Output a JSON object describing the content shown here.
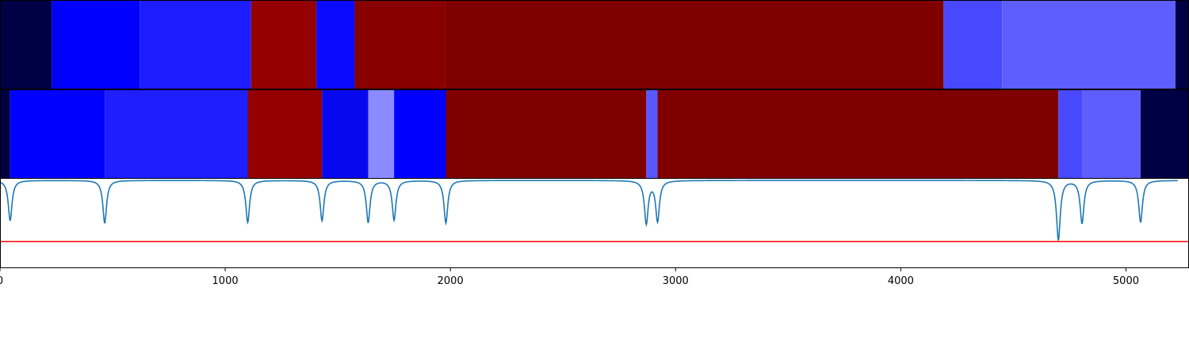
{
  "chart_data": [
    {
      "type": "heatmap",
      "title": "",
      "xlabel": "",
      "ylabel": "",
      "xlim": [
        0,
        5280
      ],
      "segments": [
        {
          "start": 0,
          "end": 230,
          "color": "#000044"
        },
        {
          "start": 230,
          "end": 620,
          "color": "#0000ff"
        },
        {
          "start": 620,
          "end": 1115,
          "color": "#1c1cff"
        },
        {
          "start": 1115,
          "end": 1405,
          "color": "#940000"
        },
        {
          "start": 1405,
          "end": 1575,
          "color": "#0a0aff"
        },
        {
          "start": 1575,
          "end": 1975,
          "color": "#880000"
        },
        {
          "start": 1975,
          "end": 4190,
          "color": "#800000"
        },
        {
          "start": 4190,
          "end": 4450,
          "color": "#4848ff"
        },
        {
          "start": 4450,
          "end": 5220,
          "color": "#5e5eff"
        },
        {
          "start": 5220,
          "end": 5280,
          "color": "#000044"
        }
      ]
    },
    {
      "type": "heatmap",
      "title": "",
      "xlabel": "",
      "ylabel": "",
      "xlim": [
        0,
        5280
      ],
      "segments": [
        {
          "start": 0,
          "end": 45,
          "color": "#000044"
        },
        {
          "start": 45,
          "end": 465,
          "color": "#0000ff"
        },
        {
          "start": 465,
          "end": 1100,
          "color": "#1e1eff"
        },
        {
          "start": 1100,
          "end": 1430,
          "color": "#940000"
        },
        {
          "start": 1430,
          "end": 1635,
          "color": "#0808f0"
        },
        {
          "start": 1635,
          "end": 1750,
          "color": "#8b8bff"
        },
        {
          "start": 1750,
          "end": 1980,
          "color": "#0000ff"
        },
        {
          "start": 1980,
          "end": 2870,
          "color": "#800000"
        },
        {
          "start": 2870,
          "end": 2920,
          "color": "#5858ff"
        },
        {
          "start": 2920,
          "end": 4700,
          "color": "#800000"
        },
        {
          "start": 4700,
          "end": 4805,
          "color": "#4848ff"
        },
        {
          "start": 4805,
          "end": 5065,
          "color": "#5e5eff"
        },
        {
          "start": 5065,
          "end": 5280,
          "color": "#000044"
        }
      ]
    },
    {
      "type": "line",
      "title": "",
      "xlabel": "",
      "ylabel": "",
      "xlim": [
        0,
        5280
      ],
      "ylim": [
        -1.1,
        0.0
      ],
      "grid": false,
      "x_ticks": [
        0,
        1000,
        2000,
        3000,
        4000,
        5000
      ],
      "x_tick_labels": [
        "0",
        "1000",
        "2000",
        "3000",
        "4000",
        "5000"
      ],
      "series": [
        {
          "color": "#1f77b4",
          "baseline": -0.02,
          "dips": [
            {
              "x": 45,
              "depth": -0.52
            },
            {
              "x": 465,
              "depth": -0.55
            },
            {
              "x": 1100,
              "depth": -0.54
            },
            {
              "x": 1430,
              "depth": -0.52
            },
            {
              "x": 1635,
              "depth": -0.54
            },
            {
              "x": 1750,
              "depth": -0.51
            },
            {
              "x": 1980,
              "depth": -0.55
            },
            {
              "x": 2870,
              "depth": -0.55
            },
            {
              "x": 2920,
              "depth": -0.52
            },
            {
              "x": 4700,
              "depth": -0.76
            },
            {
              "x": 4805,
              "depth": -0.55
            },
            {
              "x": 5065,
              "depth": -0.54
            }
          ]
        }
      ],
      "threshold": {
        "y": -0.78,
        "color": "#ff0000"
      }
    }
  ]
}
